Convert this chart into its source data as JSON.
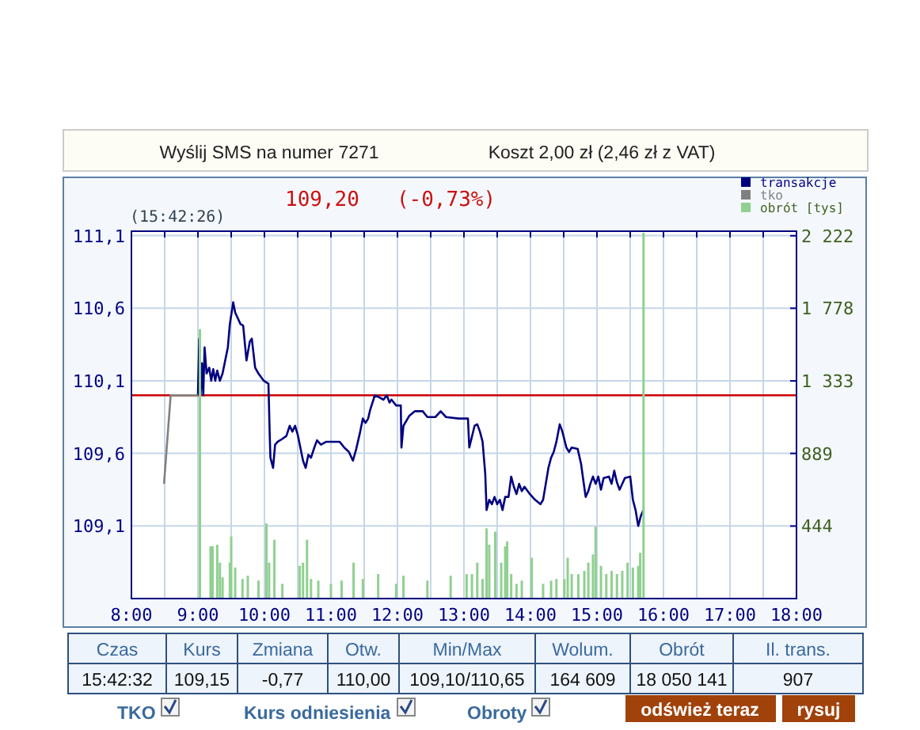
{
  "chart_data": {
    "type": "line",
    "subtitle": "(15:42:26)",
    "annotations": [
      "109,20   (-0,73%)",
      "Wyślij SMS na numer 7271",
      "Koszt 2,00 zł (2,46 zł z VAT)",
      "Czas",
      "Kurs",
      "Zmiana",
      "Otw.",
      "Min/Max",
      "Wolum.",
      "Obrót",
      "Il. trans.",
      "15:42:32",
      "109,15",
      "-0,77",
      "110,00",
      "109,10/110,65",
      "164 609",
      "18 050 141",
      "907",
      "TKO",
      "Kurs odniesienia",
      "Obroty",
      "odśwież teraz",
      "rysuj"
    ],
    "xlim": [
      8,
      18
    ],
    "xticks": [
      {
        "value": 8,
        "label": "8:00"
      },
      {
        "value": 8.5,
        "label": null
      },
      {
        "value": 9,
        "label": "9:00"
      },
      {
        "value": 9.5,
        "label": null
      },
      {
        "value": 10,
        "label": "10:00"
      },
      {
        "value": 10.5,
        "label": null
      },
      {
        "value": 11,
        "label": "11:00"
      },
      {
        "value": 11.5,
        "label": null
      },
      {
        "value": 12,
        "label": "12:00"
      },
      {
        "value": 12.5,
        "label": null
      },
      {
        "value": 13,
        "label": "13:00"
      },
      {
        "value": 13.5,
        "label": null
      },
      {
        "value": 14,
        "label": "14:00"
      },
      {
        "value": 14.5,
        "label": null
      },
      {
        "value": 15,
        "label": "15:00"
      },
      {
        "value": 15.5,
        "label": null
      },
      {
        "value": 16,
        "label": "16:00"
      },
      {
        "value": 16.5,
        "label": null
      },
      {
        "value": 17,
        "label": "17:00"
      },
      {
        "value": 17.5,
        "label": null
      },
      {
        "value": 18,
        "label": "18:00"
      }
    ],
    "ylim": [
      108.6,
      111.13
    ],
    "yticks": [
      {
        "value": 109.1,
        "label": "109,1"
      },
      {
        "value": 109.6,
        "label": "109,6"
      },
      {
        "value": 110.1,
        "label": "110,1"
      },
      {
        "value": 110.6,
        "label": "110,6"
      },
      {
        "value": 111.1,
        "label": "111,1"
      }
    ],
    "y2lim": [
      0,
      2250
    ],
    "y2ticks": [
      444,
      889,
      {
        "value": 1333,
        "label": "1 333"
      },
      {
        "value": 1778,
        "label": "1 778"
      },
      {
        "value": 2222,
        "label": "2 222"
      }
    ],
    "grid": true,
    "legend": "top right",
    "ref_lines": [
      {
        "axis": "y",
        "value": 110,
        "color": "#cc0000"
      }
    ],
    "series": [
      {
        "name": "transakcje",
        "color": "#000080",
        "x": [
          9.0,
          9.02,
          9.04,
          9.06,
          9.08,
          9.1,
          9.13,
          9.17,
          9.2,
          9.23,
          9.26,
          9.29,
          9.33,
          9.37,
          9.45,
          9.48,
          9.53,
          9.56,
          9.6,
          9.64,
          9.68,
          9.73,
          9.78,
          9.81,
          9.86,
          9.91,
          9.99,
          10.06,
          10.08,
          10.09,
          10.13,
          10.16,
          10.2,
          10.27,
          10.33,
          10.38,
          10.42,
          10.46,
          10.5,
          10.54,
          10.58,
          10.62,
          10.66,
          10.7,
          10.75,
          10.79,
          10.85,
          10.93,
          11.13,
          11.2,
          11.27,
          11.33,
          11.38,
          11.44,
          11.48,
          11.52,
          11.56,
          11.59,
          11.66,
          11.71,
          11.79,
          11.84,
          11.88,
          11.91,
          11.98,
          12.05,
          12.06,
          12.09,
          12.18,
          12.26,
          12.38,
          12.45,
          12.57,
          12.65,
          12.73,
          12.92,
          13.06,
          13.08,
          13.16,
          13.2,
          13.24,
          13.28,
          13.32,
          13.34,
          13.38,
          13.42,
          13.46,
          13.5,
          13.54,
          13.58,
          13.62,
          13.67,
          13.71,
          13.75,
          13.79,
          13.83,
          13.87,
          13.91,
          13.99,
          14.07,
          14.15,
          14.19,
          14.23,
          14.27,
          14.31,
          14.35,
          14.39,
          14.44,
          14.48,
          14.54,
          14.58,
          14.62,
          14.71,
          14.76,
          14.79,
          14.83,
          14.87,
          14.9,
          14.94,
          14.98,
          15.02,
          15.06,
          15.1,
          15.18,
          15.22,
          15.26,
          15.3,
          15.34,
          15.42,
          15.5,
          15.54,
          15.58,
          15.62,
          15.66,
          15.7
        ],
        "values": [
          110.0,
          110.39,
          110.01,
          110.22,
          110.0,
          110.33,
          110.15,
          110.19,
          110.1,
          110.18,
          110.1,
          110.17,
          110.1,
          110.15,
          110.33,
          110.49,
          110.64,
          110.57,
          110.53,
          110.49,
          110.48,
          110.24,
          110.37,
          110.39,
          110.19,
          110.15,
          110.1,
          110.08,
          109.72,
          109.57,
          109.5,
          109.66,
          109.68,
          109.7,
          109.72,
          109.79,
          109.75,
          109.79,
          109.73,
          109.64,
          109.55,
          109.5,
          109.59,
          109.57,
          109.64,
          109.69,
          109.66,
          109.68,
          109.68,
          109.64,
          109.61,
          109.55,
          109.63,
          109.75,
          109.84,
          109.81,
          109.84,
          109.9,
          110.0,
          109.99,
          109.97,
          110.0,
          109.95,
          109.97,
          109.93,
          109.93,
          109.64,
          109.79,
          109.86,
          109.89,
          109.89,
          109.85,
          109.85,
          109.89,
          109.85,
          109.84,
          109.84,
          109.64,
          109.79,
          109.8,
          109.75,
          109.68,
          109.46,
          109.21,
          109.28,
          109.25,
          109.3,
          109.25,
          109.28,
          109.21,
          109.3,
          109.3,
          109.44,
          109.37,
          109.32,
          109.39,
          109.34,
          109.37,
          109.32,
          109.28,
          109.25,
          109.28,
          109.39,
          109.5,
          109.57,
          109.61,
          109.68,
          109.8,
          109.75,
          109.64,
          109.61,
          109.64,
          109.63,
          109.53,
          109.43,
          109.3,
          109.34,
          109.39,
          109.44,
          109.39,
          109.44,
          109.35,
          109.43,
          109.44,
          109.39,
          109.48,
          109.4,
          109.35,
          109.43,
          109.44,
          109.28,
          109.21,
          109.1,
          109.17,
          109.21
        ]
      },
      {
        "name": "tko",
        "color": "#808080",
        "x": [
          8.49,
          8.59,
          9.0
        ],
        "values": [
          109.39,
          110.0,
          110.0
        ]
      },
      {
        "name": "obrót [tys]",
        "type": "bar",
        "axis": "y2",
        "color": "#90d090",
        "x": [
          9.03,
          9.19,
          9.22,
          9.29,
          9.33,
          9.37,
          9.48,
          9.5,
          9.56,
          9.67,
          9.75,
          9.91,
          10.03,
          10.07,
          10.15,
          10.27,
          10.53,
          10.58,
          10.64,
          10.7,
          10.81,
          11.0,
          11.16,
          11.34,
          11.48,
          11.71,
          11.98,
          12.09,
          12.45,
          12.8,
          13.04,
          13.12,
          13.2,
          13.28,
          13.34,
          13.38,
          13.47,
          13.56,
          13.62,
          13.65,
          13.71,
          13.79,
          13.87,
          14.02,
          14.19,
          14.31,
          14.39,
          14.51,
          14.56,
          14.62,
          14.72,
          14.81,
          14.87,
          14.94,
          14.98,
          15.06,
          15.14,
          15.22,
          15.3,
          15.38,
          15.46,
          15.54,
          15.62,
          15.65,
          15.7
        ],
        "values": [
          1650,
          320,
          320,
          330,
          220,
          130,
          220,
          380,
          190,
          120,
          140,
          110,
          460,
          220,
          360,
          90,
          200,
          220,
          360,
          120,
          110,
          90,
          110,
          220,
          120,
          150,
          90,
          140,
          110,
          140,
          150,
          150,
          220,
          120,
          430,
          330,
          410,
          220,
          320,
          350,
          150,
          90,
          110,
          250,
          90,
          110,
          120,
          120,
          250,
          150,
          150,
          170,
          220,
          270,
          440,
          200,
          150,
          170,
          150,
          170,
          220,
          190,
          200,
          280,
          2240
        ]
      }
    ]
  }
}
